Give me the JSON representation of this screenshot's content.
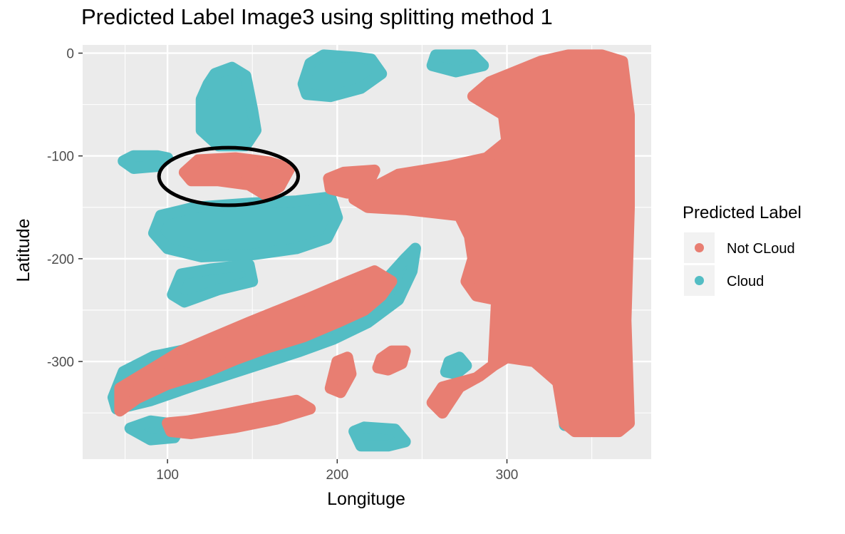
{
  "chart_data": {
    "type": "scatter",
    "title": "Predicted Label Image3 using splitting method 1",
    "xlabel": "Longituge",
    "ylabel": "Latitude",
    "xlim": [
      50,
      385
    ],
    "ylim": [
      -395,
      8
    ],
    "x_ticks": [
      100,
      200,
      300
    ],
    "y_ticks": [
      0,
      -100,
      -200,
      -300
    ],
    "x_minor": [
      75,
      150,
      250,
      350
    ],
    "y_minor": [
      -50,
      -150,
      -250,
      -350
    ],
    "grid": true,
    "legend": {
      "title": "Predicted Label",
      "placement": "right",
      "entries": [
        {
          "label": "Not CLoud",
          "color": "#E87E72"
        },
        {
          "label": "Cloud",
          "color": "#53BDC4"
        }
      ]
    },
    "colors": {
      "panel": "#EBEBEB",
      "grid": "#FFFFFF",
      "not_cloud": "#E87E72",
      "cloud": "#53BDC4",
      "annotation": "#000000"
    },
    "annotation": {
      "shape": "ellipse",
      "center": [
        136,
        -120
      ],
      "radius_x": 41,
      "radius_y": 28
    },
    "series": [
      {
        "name": "Cloud",
        "regions": [
          [
            [
              124,
              -30
            ],
            [
              128,
              -20
            ],
            [
              138,
              -14
            ],
            [
              146,
              -22
            ],
            [
              150,
              -55
            ],
            [
              152,
              -75
            ],
            [
              146,
              -90
            ],
            [
              130,
              -90
            ],
            [
              120,
              -75
            ],
            [
              120,
              -45
            ]
          ],
          [
            [
              92,
              -175
            ],
            [
              96,
              -158
            ],
            [
              116,
              -150
            ],
            [
              150,
              -146
            ],
            [
              176,
              -144
            ],
            [
              196,
              -140
            ],
            [
              200,
              -160
            ],
            [
              194,
              -180
            ],
            [
              176,
              -190
            ],
            [
              150,
              -196
            ],
            [
              120,
              -198
            ],
            [
              100,
              -190
            ]
          ],
          [
            [
              68,
              -335
            ],
            [
              74,
              -310
            ],
            [
              92,
              -295
            ],
            [
              130,
              -282
            ],
            [
              162,
              -266
            ],
            [
              192,
              -250
            ],
            [
              210,
              -236
            ],
            [
              228,
              -222
            ],
            [
              240,
              -200
            ],
            [
              246,
              -190
            ],
            [
              244,
              -212
            ],
            [
              236,
              -240
            ],
            [
              218,
              -262
            ],
            [
              198,
              -278
            ],
            [
              178,
              -290
            ],
            [
              150,
              -305
            ],
            [
              118,
              -322
            ],
            [
              90,
              -338
            ],
            [
              70,
              -346
            ]
          ],
          [
            [
              180,
              -30
            ],
            [
              184,
              -10
            ],
            [
              192,
              -2
            ],
            [
              210,
              -4
            ],
            [
              220,
              -6
            ],
            [
              226,
              -20
            ],
            [
              214,
              -34
            ],
            [
              196,
              -42
            ],
            [
              182,
              -40
            ]
          ],
          [
            [
              256,
              -12
            ],
            [
              258,
              -2
            ],
            [
              280,
              -2
            ],
            [
              286,
              -12
            ],
            [
              270,
              -18
            ]
          ],
          [
            [
              103,
              -235
            ],
            [
              108,
              -215
            ],
            [
              126,
              -210
            ],
            [
              148,
              -206
            ],
            [
              150,
              -222
            ],
            [
              130,
              -230
            ],
            [
              110,
              -242
            ]
          ],
          [
            [
              210,
              -368
            ],
            [
              216,
              -364
            ],
            [
              234,
              -366
            ],
            [
              240,
              -378
            ],
            [
              230,
              -382
            ],
            [
              214,
              -382
            ]
          ],
          [
            [
              74,
              -105
            ],
            [
              80,
              -100
            ],
            [
              94,
              -100
            ],
            [
              100,
              -102
            ],
            [
              94,
              -110
            ],
            [
              80,
              -112
            ]
          ],
          [
            [
              333,
              -345
            ],
            [
              340,
              -338
            ],
            [
              350,
              -340
            ],
            [
              354,
              -358
            ],
            [
              344,
              -364
            ],
            [
              334,
              -362
            ]
          ],
          [
            [
              266,
              -300
            ],
            [
              272,
              -296
            ],
            [
              276,
              -304
            ],
            [
              270,
              -312
            ],
            [
              264,
              -310
            ]
          ],
          [
            [
              78,
              -365
            ],
            [
              90,
              -358
            ],
            [
              108,
              -362
            ],
            [
              104,
              -374
            ],
            [
              90,
              -376
            ]
          ]
        ]
      },
      {
        "name": "Not CLoud",
        "regions": [
          [
            [
              280,
              -42
            ],
            [
              290,
              -28
            ],
            [
              302,
              -20
            ],
            [
              320,
              -8
            ],
            [
              336,
              -2
            ],
            [
              356,
              -2
            ],
            [
              368,
              -8
            ],
            [
              372,
              -60
            ],
            [
              372,
              -150
            ],
            [
              370,
              -260
            ],
            [
              372,
              -360
            ],
            [
              366,
              -368
            ],
            [
              340,
              -368
            ],
            [
              334,
              -360
            ],
            [
              330,
              -320
            ],
            [
              316,
              -300
            ],
            [
              300,
              -296
            ],
            [
              290,
              -306
            ],
            [
              282,
              -316
            ],
            [
              262,
              -325
            ],
            [
              256,
              -340
            ],
            [
              262,
              -350
            ],
            [
              272,
              -325
            ],
            [
              284,
              -314
            ],
            [
              292,
              -304
            ],
            [
              294,
              -240
            ],
            [
              282,
              -236
            ],
            [
              276,
              -222
            ],
            [
              280,
              -200
            ],
            [
              278,
              -178
            ],
            [
              272,
              -158
            ],
            [
              240,
              -152
            ],
            [
              218,
              -150
            ],
            [
              210,
              -142
            ],
            [
              220,
              -132
            ],
            [
              236,
              -118
            ],
            [
              266,
              -110
            ],
            [
              288,
              -102
            ],
            [
              300,
              -86
            ],
            [
              298,
              -60
            ]
          ],
          [
            [
              72,
              -348
            ],
            [
              82,
              -336
            ],
            [
              100,
              -322
            ],
            [
              120,
              -312
            ],
            [
              140,
              -298
            ],
            [
              160,
              -286
            ],
            [
              180,
              -276
            ],
            [
              200,
              -262
            ],
            [
              216,
              -250
            ],
            [
              226,
              -236
            ],
            [
              232,
              -222
            ],
            [
              222,
              -212
            ],
            [
              204,
              -224
            ],
            [
              184,
              -238
            ],
            [
              166,
              -250
            ],
            [
              148,
              -262
            ],
            [
              128,
              -276
            ],
            [
              108,
              -290
            ],
            [
              88,
              -310
            ],
            [
              72,
              -326
            ]
          ],
          [
            [
              110,
              -116
            ],
            [
              118,
              -104
            ],
            [
              140,
              -102
            ],
            [
              160,
              -106
            ],
            [
              172,
              -112
            ],
            [
              166,
              -130
            ],
            [
              158,
              -138
            ],
            [
              148,
              -128
            ],
            [
              130,
              -124
            ],
            [
              114,
              -124
            ]
          ],
          [
            [
              100,
              -360
            ],
            [
              112,
              -358
            ],
            [
              132,
              -352
            ],
            [
              156,
              -344
            ],
            [
              176,
              -338
            ],
            [
              184,
              -346
            ],
            [
              164,
              -356
            ],
            [
              140,
              -364
            ],
            [
              114,
              -370
            ],
            [
              102,
              -368
            ]
          ],
          [
            [
              195,
              -122
            ],
            [
              204,
              -116
            ],
            [
              222,
              -114
            ],
            [
              218,
              -128
            ],
            [
              206,
              -136
            ],
            [
              196,
              -132
            ]
          ],
          [
            [
              226,
              -297
            ],
            [
              232,
              -290
            ],
            [
              240,
              -290
            ],
            [
              238,
              -302
            ],
            [
              230,
              -308
            ],
            [
              224,
              -306
            ]
          ],
          [
            [
              200,
              -300
            ],
            [
              206,
              -296
            ],
            [
              208,
              -312
            ],
            [
              202,
              -330
            ],
            [
              196,
              -326
            ]
          ]
        ]
      }
    ]
  }
}
